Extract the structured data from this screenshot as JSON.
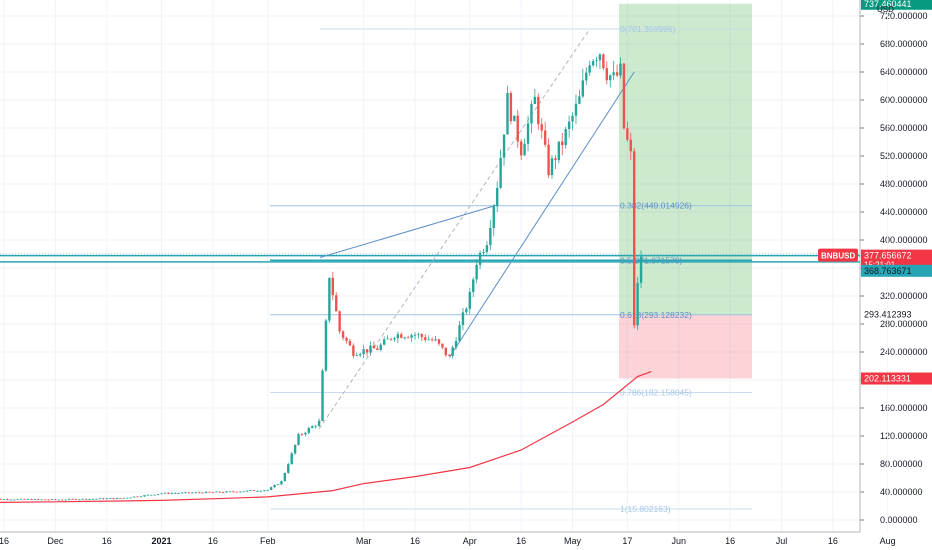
{
  "indicator_label": "MA",
  "chart_data": {
    "type": "candlestick",
    "symbol": "BNBUSD",
    "currency": "USD",
    "x_axis_labels": [
      "16",
      "Dec",
      "16",
      "2021",
      "16",
      "Feb",
      "Mar",
      "16",
      "Apr",
      "16",
      "May",
      "17",
      "Jun",
      "16",
      "Jul",
      "16",
      "Aug"
    ],
    "y_axis_labels": [
      "720.000000",
      "680.000000",
      "640.000000",
      "600.000000",
      "560.000000",
      "520.000000",
      "480.000000",
      "440.000000",
      "400.000000",
      "360.000000",
      "320.000000",
      "280.000000",
      "240.000000",
      "200.000000",
      "160.000000",
      "120.000000",
      "80.000000",
      "40.000000",
      "0.000000"
    ],
    "ylim": [
      -15,
      740
    ],
    "price_tags": {
      "symbol_value": "377.656672",
      "countdown": "15:21:01",
      "ma_value": "368.763671",
      "long_target": "737.460441",
      "entry_line": "293.412393",
      "stop_loss": "202.113331"
    },
    "fibonacci_levels": [
      {
        "label": "0(701.359996)",
        "value": 701.36
      },
      {
        "label": "0.382(449.014926)",
        "value": 449.01
      },
      {
        "label": "0.5(371.071579)",
        "value": 371.07
      },
      {
        "label": "0.618(293.128232)",
        "value": 293.13
      },
      {
        "label": "0.786(182.158045)",
        "value": 182.16
      },
      {
        "label": "1(15.802163)",
        "value": 15.8
      }
    ],
    "horizontal_levels": [
      368.76,
      377.66
    ],
    "long_position": {
      "entry": 293.41,
      "target": 737.46,
      "stop": 202.11
    },
    "ma_line": {
      "color": "#f23645",
      "points": [
        [
          "Nov 10",
          25
        ],
        [
          "Dec 1",
          26
        ],
        [
          "Jan 1",
          28
        ],
        [
          "Jan 20",
          31
        ],
        [
          "Feb 1",
          33
        ],
        [
          "Feb 20",
          42
        ],
        [
          "Mar 1",
          52
        ],
        [
          "Mar 16",
          62
        ],
        [
          "Apr 1",
          75
        ],
        [
          "Apr 16",
          100
        ],
        [
          "May 1",
          140
        ],
        [
          "May 10",
          165
        ],
        [
          "May 20",
          205
        ],
        [
          "May 24",
          212
        ]
      ]
    },
    "price_anchors": [
      [
        "Nov 10",
        30
      ],
      [
        "Dec 1",
        29
      ],
      [
        "Dec 20",
        31
      ],
      [
        "Jan 1",
        38
      ],
      [
        "Jan 20",
        40
      ],
      [
        "Feb 1",
        43
      ],
      [
        "Feb 5",
        55
      ],
      [
        "Feb 10",
        120
      ],
      [
        "Feb 16",
        140
      ],
      [
        "Feb 19",
        350
      ],
      [
        "Feb 22",
        270
      ],
      [
        "Feb 26",
        240
      ],
      [
        "Mar 5",
        245
      ],
      [
        "Mar 10",
        265
      ],
      [
        "Mar 16",
        265
      ],
      [
        "Mar 22",
        255
      ],
      [
        "Mar 26",
        232
      ],
      [
        "Apr 1",
        320
      ],
      [
        "Apr 3",
        370
      ],
      [
        "Apr 6",
        400
      ],
      [
        "Apr 9",
        480
      ],
      [
        "Apr 12",
        600
      ],
      [
        "Apr 16",
        530
      ],
      [
        "Apr 20",
        600
      ],
      [
        "Apr 24",
        500
      ],
      [
        "Apr 28",
        540
      ],
      [
        "May 3",
        600
      ],
      [
        "May 6",
        660
      ],
      [
        "May 9",
        670
      ],
      [
        "May 11",
        640
      ],
      [
        "May 13",
        630
      ],
      [
        "May 15",
        640
      ],
      [
        "May 16",
        560
      ],
      [
        "May 18",
        520
      ],
      [
        "May 19",
        280
      ],
      [
        "May 20",
        335
      ],
      [
        "May 21",
        378
      ]
    ]
  }
}
